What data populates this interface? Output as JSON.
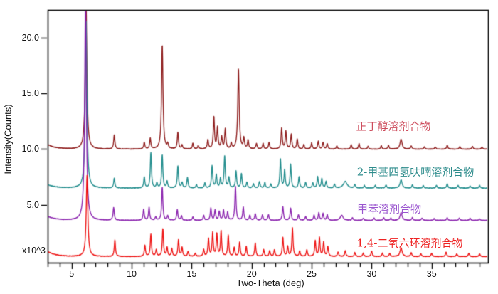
{
  "chart_data": {
    "type": "line",
    "title": "",
    "xlabel": "Two-Theta (deg)",
    "ylabel": "Intensity(Counts)",
    "y_multiplier": "x10^3",
    "xlim": [
      3,
      39.7
    ],
    "ylim": [
      -0.2,
      22.5
    ],
    "x_major_ticks": [
      5,
      10,
      15,
      20,
      25,
      30,
      35
    ],
    "x_minor_step": 1,
    "y_major_ticks": [
      5,
      10,
      15,
      20
    ],
    "y_tick_labels": [
      "5.0",
      "10.0",
      "15.0",
      "20.0"
    ],
    "grid": false,
    "legend_position": "inline-right",
    "frame_color": "#000000",
    "series": [
      {
        "name": "正丁醇溶剂合物",
        "color": "#8E1B1B",
        "label_color": "#CD4C5C",
        "baseline": 10.0,
        "start_decay": 0.4,
        "peaks": [
          [
            6.2,
            13,
            0.08
          ],
          [
            8.55,
            1.3
          ],
          [
            11.05,
            0.6
          ],
          [
            11.55,
            0.95
          ],
          [
            12.55,
            9.4,
            0.07
          ],
          [
            13.0,
            0.4
          ],
          [
            13.85,
            1.5
          ],
          [
            14.2,
            0.35
          ],
          [
            15.1,
            0.5
          ],
          [
            15.55,
            0.3
          ],
          [
            16.35,
            0.85
          ],
          [
            16.85,
            2.9
          ],
          [
            17.15,
            1.9
          ],
          [
            17.5,
            1.1
          ],
          [
            17.8,
            1.8
          ],
          [
            18.3,
            0.5
          ],
          [
            18.9,
            7.2,
            0.07
          ],
          [
            19.35,
            0.95
          ],
          [
            19.7,
            0.8
          ],
          [
            20.4,
            0.5
          ],
          [
            20.95,
            0.5
          ],
          [
            21.45,
            0.6
          ],
          [
            22.5,
            1.9
          ],
          [
            22.85,
            1.6
          ],
          [
            23.3,
            1.35
          ],
          [
            23.8,
            0.9
          ],
          [
            24.35,
            0.4
          ],
          [
            25.0,
            0.55
          ],
          [
            25.55,
            0.7
          ],
          [
            25.95,
            0.6
          ],
          [
            26.3,
            0.5
          ],
          [
            27.1,
            0.3
          ],
          [
            28.3,
            0.4
          ],
          [
            28.95,
            0.5
          ],
          [
            29.7,
            0.25
          ],
          [
            30.8,
            0.3
          ],
          [
            31.4,
            0.35
          ],
          [
            32.45,
            0.9,
            0.1
          ],
          [
            33.3,
            0.3
          ],
          [
            34.4,
            0.2
          ],
          [
            35.3,
            0.2
          ],
          [
            36.3,
            0.35
          ],
          [
            37.35,
            0.25
          ],
          [
            38.4,
            0.25
          ],
          [
            39.2,
            0.2
          ]
        ]
      },
      {
        "name": "2-甲基四氢呋喃溶剂合物",
        "color": "#1F8C8C",
        "label_color": "#2E8C8C",
        "baseline": 6.5,
        "start_decay": 0.3,
        "peaks": [
          [
            6.2,
            15,
            0.08
          ],
          [
            8.55,
            0.9
          ],
          [
            11.05,
            1.0
          ],
          [
            11.6,
            3.2
          ],
          [
            12.1,
            0.45
          ],
          [
            12.55,
            3.0
          ],
          [
            12.95,
            0.6
          ],
          [
            13.85,
            2.0
          ],
          [
            14.2,
            0.5
          ],
          [
            14.65,
            0.95
          ],
          [
            15.4,
            0.3
          ],
          [
            16.1,
            0.45
          ],
          [
            16.7,
            2.0
          ],
          [
            17.05,
            1.2
          ],
          [
            17.4,
            0.85
          ],
          [
            17.75,
            2.9
          ],
          [
            18.1,
            0.95
          ],
          [
            18.7,
            1.5
          ],
          [
            19.15,
            1.3
          ],
          [
            19.6,
            0.5
          ],
          [
            20.15,
            0.4
          ],
          [
            20.65,
            0.6
          ],
          [
            21.1,
            0.5
          ],
          [
            21.6,
            0.35
          ],
          [
            22.4,
            2.6
          ],
          [
            22.75,
            1.6
          ],
          [
            23.25,
            2.1
          ],
          [
            23.95,
            1.0
          ],
          [
            24.5,
            0.5
          ],
          [
            25.1,
            0.45
          ],
          [
            25.5,
            1.0
          ],
          [
            25.85,
            0.85
          ],
          [
            26.2,
            0.6
          ],
          [
            26.9,
            0.35
          ],
          [
            27.8,
            0.6,
            0.18
          ],
          [
            28.6,
            0.3
          ],
          [
            29.4,
            0.25
          ],
          [
            30.3,
            0.25
          ],
          [
            31.2,
            0.3
          ],
          [
            32.45,
            0.75,
            0.1
          ],
          [
            33.4,
            0.3
          ],
          [
            34.3,
            0.25
          ],
          [
            35.4,
            0.25
          ],
          [
            36.3,
            0.4
          ],
          [
            37.2,
            0.25
          ],
          [
            38.2,
            0.2
          ],
          [
            39.0,
            0.25
          ]
        ]
      },
      {
        "name": "甲苯溶剂合物",
        "color": "#8A22AE",
        "label_color": "#9A55CF",
        "baseline": 3.6,
        "start_decay": 0.35,
        "peaks": [
          [
            6.15,
            20,
            0.08
          ],
          [
            8.5,
            1.15
          ],
          [
            11.0,
            1.0
          ],
          [
            11.45,
            1.15
          ],
          [
            12.0,
            0.3
          ],
          [
            12.55,
            3.0
          ],
          [
            13.0,
            0.4
          ],
          [
            13.8,
            0.95
          ],
          [
            14.15,
            0.4
          ],
          [
            15.1,
            0.3
          ],
          [
            16.0,
            0.45
          ],
          [
            16.6,
            1.1
          ],
          [
            16.95,
            0.9
          ],
          [
            17.3,
            0.8
          ],
          [
            17.65,
            0.9
          ],
          [
            18.0,
            0.75
          ],
          [
            18.65,
            3.1
          ],
          [
            19.3,
            1.2
          ],
          [
            19.85,
            0.45
          ],
          [
            20.3,
            0.6
          ],
          [
            20.9,
            0.5
          ],
          [
            21.4,
            0.5
          ],
          [
            22.6,
            1.25
          ],
          [
            23.25,
            1.1
          ],
          [
            23.9,
            0.5
          ],
          [
            24.5,
            0.35
          ],
          [
            25.2,
            0.45
          ],
          [
            25.6,
            0.7
          ],
          [
            25.95,
            0.6
          ],
          [
            26.3,
            0.5
          ],
          [
            27.5,
            0.45,
            0.14
          ],
          [
            28.4,
            0.25
          ],
          [
            29.3,
            0.2
          ],
          [
            30.2,
            0.2
          ],
          [
            31.0,
            0.25
          ],
          [
            31.6,
            0.2
          ],
          [
            32.45,
            0.7,
            0.1
          ],
          [
            33.4,
            0.25
          ],
          [
            34.2,
            0.2
          ],
          [
            35.2,
            0.15
          ],
          [
            36.3,
            0.25
          ],
          [
            37.3,
            0.2
          ],
          [
            38.2,
            0.2
          ],
          [
            39.0,
            0.15
          ]
        ]
      },
      {
        "name": "1,4-二氧六环溶剂合物",
        "color": "#EE1111",
        "label_color": "#EE2222",
        "baseline": 0.35,
        "start_decay": 0.45,
        "peaks": [
          [
            6.28,
            7.3,
            0.08
          ],
          [
            8.6,
            1.5
          ],
          [
            11.1,
            1.0
          ],
          [
            11.6,
            2.0
          ],
          [
            12.05,
            0.6
          ],
          [
            12.6,
            2.5
          ],
          [
            12.95,
            0.8
          ],
          [
            13.35,
            0.7
          ],
          [
            13.9,
            1.5
          ],
          [
            14.2,
            0.8
          ],
          [
            14.7,
            0.45
          ],
          [
            15.3,
            0.3
          ],
          [
            16.0,
            0.6
          ],
          [
            16.4,
            1.6
          ],
          [
            16.75,
            2.1
          ],
          [
            17.1,
            2.0
          ],
          [
            17.45,
            2.3
          ],
          [
            18.05,
            1.9
          ],
          [
            18.55,
            0.8
          ],
          [
            19.0,
            1.3
          ],
          [
            19.55,
            0.9
          ],
          [
            20.3,
            1.2
          ],
          [
            21.0,
            0.6
          ],
          [
            21.5,
            0.5
          ],
          [
            21.9,
            0.6
          ],
          [
            22.6,
            1.7
          ],
          [
            23.0,
            0.9
          ],
          [
            23.4,
            2.6
          ],
          [
            24.0,
            0.5
          ],
          [
            24.6,
            0.6
          ],
          [
            25.3,
            1.4
          ],
          [
            25.65,
            1.7
          ],
          [
            26.0,
            1.3
          ],
          [
            26.35,
            0.9
          ],
          [
            27.2,
            0.4
          ],
          [
            27.8,
            0.5
          ],
          [
            28.6,
            0.35
          ],
          [
            29.3,
            0.3
          ],
          [
            30.0,
            0.5
          ],
          [
            30.9,
            0.3
          ],
          [
            31.5,
            0.3
          ],
          [
            32.45,
            0.8,
            0.1
          ],
          [
            33.3,
            0.35
          ],
          [
            34.1,
            0.25
          ],
          [
            35.0,
            0.3
          ],
          [
            36.2,
            0.4
          ],
          [
            37.1,
            0.25
          ],
          [
            38.1,
            0.3
          ],
          [
            39.0,
            0.25
          ]
        ]
      }
    ]
  }
}
